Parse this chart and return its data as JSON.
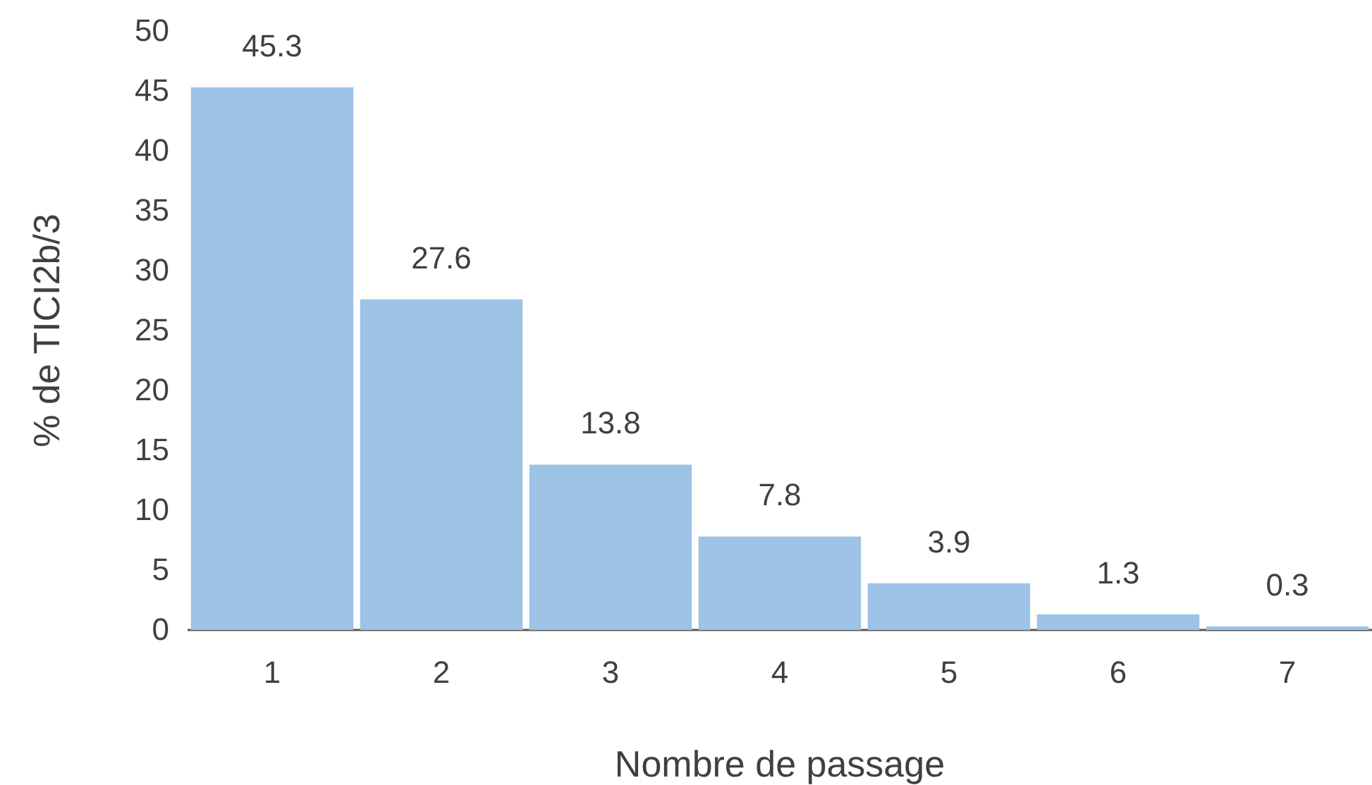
{
  "chart_data": {
    "type": "bar",
    "xlabel": "Nombre de passage",
    "ylabel": "% de TICI2b/3",
    "categories": [
      "1",
      "2",
      "3",
      "4",
      "5",
      "6",
      "7"
    ],
    "values": [
      45.3,
      27.6,
      13.8,
      7.8,
      3.9,
      1.3,
      0.3
    ],
    "color": "#9dc3e6",
    "ylim": [
      0,
      50
    ],
    "yticks": [
      0,
      5,
      10,
      15,
      20,
      25,
      30,
      35,
      40,
      45,
      50
    ],
    "data_labels": true
  }
}
